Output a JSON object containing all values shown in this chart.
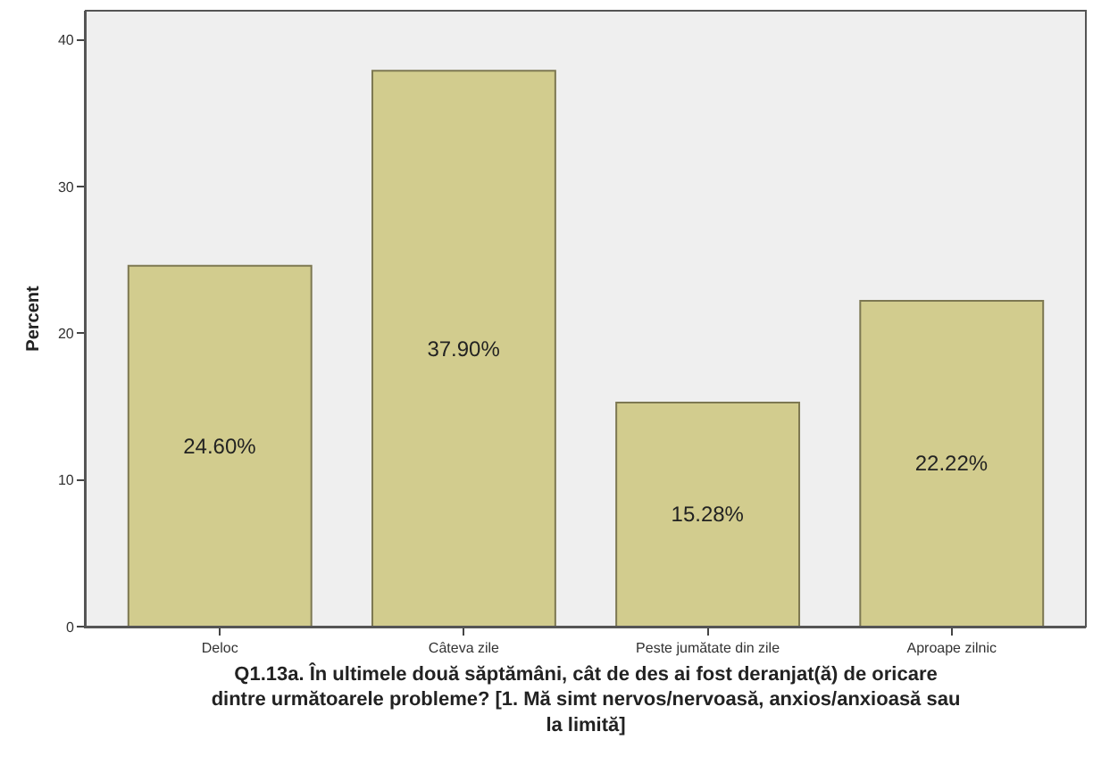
{
  "chart_data": {
    "type": "bar",
    "categories": [
      "Deloc",
      "Câteva zile",
      "Peste jumătate din zile",
      "Aproape zilnic"
    ],
    "values": [
      24.6,
      37.9,
      15.28,
      22.22
    ],
    "value_labels": [
      "24.60%",
      "37.90%",
      "15.28%",
      "22.22%"
    ],
    "color": "#d2cc8e",
    "xlabel": "Q1.13a. În ultimele două săptămâni, cât de des ai fost deranjat(ă) de oricare dintre următoarele probleme? [1. Mă simt nervos/nervoasă, anxios/anxioasă sau la limită]",
    "ylabel": "Percent",
    "ylim": [
      0,
      42
    ],
    "yticks": [
      0,
      10,
      20,
      30,
      40
    ]
  }
}
